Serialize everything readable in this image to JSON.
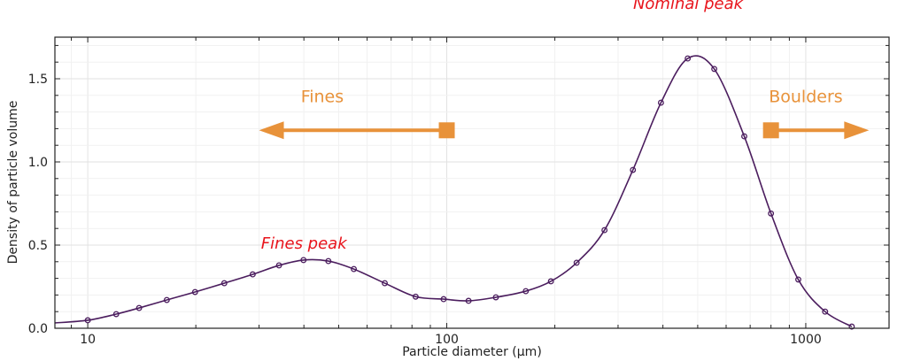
{
  "chart_data": {
    "type": "line",
    "title": "",
    "xlabel": "Particle diameter (μm)",
    "ylabel": "Density of particle volume",
    "xscale": "log",
    "xlim": [
      8.1,
      1706
    ],
    "ylim": [
      0,
      1.75
    ],
    "xticks": [
      10,
      100,
      1000
    ],
    "xtick_labels": [
      "10",
      "100",
      "1000"
    ],
    "yticks": [
      0,
      0.5,
      1.0,
      1.5
    ],
    "ytick_labels": [
      "0.0",
      "0.5",
      "1.0",
      "1.5"
    ],
    "grid": true,
    "series": [
      {
        "name": "density",
        "color": "#4b1d5e",
        "x": [
          10,
          12.0,
          13.9,
          16.6,
          19.9,
          24.0,
          28.8,
          34.1,
          39.9,
          46.8,
          55.1,
          67.2,
          81.9,
          98,
          115,
          137,
          166,
          195,
          230,
          275,
          330,
          395,
          469,
          556,
          674,
          800,
          953,
          1132,
          1343
        ],
        "y": [
          0.048,
          0.085,
          0.122,
          0.17,
          0.218,
          0.271,
          0.324,
          0.378,
          0.41,
          0.404,
          0.356,
          0.271,
          0.19,
          0.175,
          0.165,
          0.186,
          0.223,
          0.282,
          0.394,
          0.59,
          0.952,
          1.356,
          1.622,
          1.559,
          1.154,
          0.69,
          0.293,
          0.1,
          0.01
        ],
        "curve_start": [
          8.1,
          0.032
        ]
      }
    ],
    "annotations": [
      {
        "text": "Fines peak",
        "color": "#e8141c",
        "x": 40,
        "y": 0.48
      },
      {
        "text": "Nominal peak",
        "color": "#e8141c",
        "x": 470,
        "y": 1.92
      },
      {
        "text": "Fines",
        "color": "#e8923a",
        "x": 45,
        "y": 1.36,
        "arrow_from": 100,
        "arrow_to": 30,
        "arrow_y": 1.19
      },
      {
        "text": "Boulders",
        "color": "#e8923a",
        "x": 1000,
        "y": 1.36,
        "arrow_from": 800,
        "arrow_to": 1500,
        "arrow_y": 1.19
      }
    ]
  }
}
